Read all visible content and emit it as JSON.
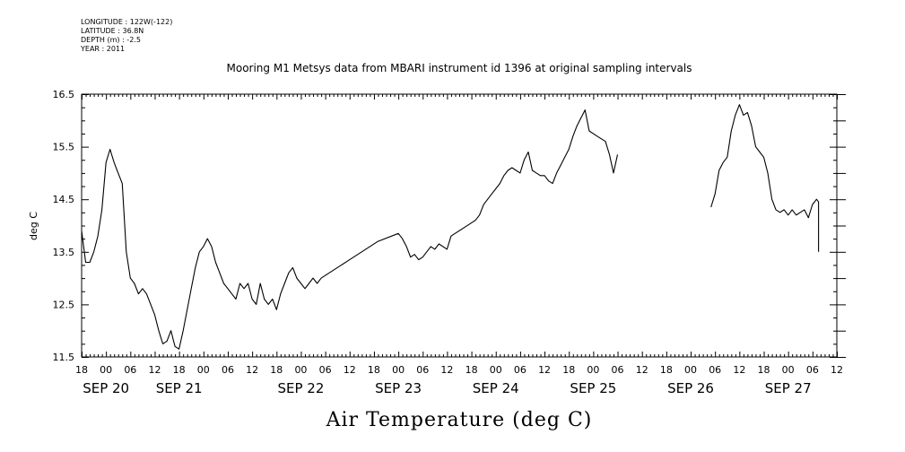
{
  "metadata": {
    "longitude": "LONGITUDE : 122W(-122)",
    "latitude": "LATITUDE : 36.8N",
    "depth": "DEPTH (m) : -2.5",
    "year": "YEAR : 2011"
  },
  "chart_data": {
    "type": "line",
    "title": "Mooring M1 Metsys data from MBARI instrument id 1396 at original sampling intervals",
    "xlabel": "Air Temperature (deg C)",
    "ylabel": "deg C",
    "x_units": "hours since 2011-09-19 18:00",
    "xlim": [
      0,
      186
    ],
    "ylim": [
      11.5,
      16.5
    ],
    "y_ticks": [
      11.5,
      12.5,
      13.5,
      14.5,
      15.5,
      16.5
    ],
    "x_hour_ticks": [
      "18",
      "00",
      "06",
      "12",
      "18",
      "00",
      "06",
      "12",
      "18",
      "00",
      "06",
      "12",
      "18",
      "00",
      "06",
      "12",
      "18",
      "00",
      "06",
      "12",
      "18",
      "00",
      "06",
      "12",
      "18",
      "00",
      "06",
      "12",
      "18",
      "00",
      "06",
      "12"
    ],
    "x_day_labels": [
      {
        "label": "SEP 20",
        "hour": 6
      },
      {
        "label": "SEP 21",
        "hour": 24
      },
      {
        "label": "SEP 22",
        "hour": 54
      },
      {
        "label": "SEP 23",
        "hour": 78
      },
      {
        "label": "SEP 24",
        "hour": 102
      },
      {
        "label": "SEP 25",
        "hour": 126
      },
      {
        "label": "SEP 26",
        "hour": 150
      },
      {
        "label": "SEP 27",
        "hour": 174
      }
    ],
    "series": [
      {
        "points": [
          [
            0,
            13.9
          ],
          [
            1,
            13.3
          ],
          [
            2,
            13.3
          ],
          [
            3,
            13.5
          ],
          [
            4,
            13.8
          ],
          [
            5,
            14.3
          ],
          [
            6,
            15.2
          ],
          [
            7,
            15.45
          ],
          [
            8,
            15.2
          ],
          [
            9,
            15.0
          ],
          [
            10,
            14.8
          ],
          [
            11,
            13.5
          ],
          [
            12,
            13.0
          ],
          [
            13,
            12.9
          ],
          [
            14,
            12.7
          ],
          [
            15,
            12.8
          ],
          [
            16,
            12.7
          ],
          [
            17,
            12.5
          ],
          [
            18,
            12.3
          ],
          [
            19,
            12.0
          ],
          [
            20,
            11.75
          ],
          [
            21,
            11.8
          ],
          [
            22,
            12.0
          ],
          [
            23,
            11.7
          ],
          [
            24,
            11.65
          ],
          [
            25,
            12.0
          ],
          [
            26,
            12.4
          ],
          [
            27,
            12.8
          ],
          [
            28,
            13.2
          ],
          [
            29,
            13.5
          ],
          [
            30,
            13.6
          ],
          [
            31,
            13.75
          ],
          [
            32,
            13.6
          ],
          [
            33,
            13.3
          ],
          [
            34,
            13.1
          ],
          [
            35,
            12.9
          ],
          [
            36,
            12.8
          ],
          [
            37,
            12.7
          ],
          [
            38,
            12.6
          ],
          [
            39,
            12.9
          ],
          [
            40,
            12.8
          ],
          [
            41,
            12.9
          ],
          [
            42,
            12.6
          ],
          [
            43,
            12.5
          ],
          [
            44,
            12.9
          ],
          [
            45,
            12.6
          ],
          [
            46,
            12.5
          ],
          [
            47,
            12.6
          ],
          [
            48,
            12.4
          ],
          [
            49,
            12.7
          ],
          [
            50,
            12.9
          ],
          [
            51,
            13.1
          ],
          [
            52,
            13.2
          ],
          [
            53,
            13.0
          ],
          [
            54,
            12.9
          ],
          [
            55,
            12.8
          ],
          [
            56,
            12.9
          ],
          [
            57,
            13.0
          ],
          [
            58,
            12.9
          ],
          [
            59,
            13.0
          ]
        ]
      },
      {
        "points": [
          [
            59,
            13.0
          ],
          [
            66,
            13.35
          ],
          [
            73,
            13.7
          ],
          [
            78,
            13.85
          ],
          [
            79,
            13.75
          ],
          [
            80,
            13.6
          ],
          [
            81,
            13.4
          ],
          [
            82,
            13.45
          ],
          [
            83,
            13.35
          ],
          [
            84,
            13.4
          ],
          [
            85,
            13.5
          ],
          [
            86,
            13.6
          ],
          [
            87,
            13.55
          ],
          [
            88,
            13.65
          ],
          [
            90,
            13.55
          ],
          [
            91,
            13.8
          ],
          [
            94,
            13.95
          ],
          [
            97,
            14.1
          ],
          [
            98,
            14.2
          ],
          [
            99,
            14.4
          ],
          [
            101,
            14.6
          ],
          [
            103,
            14.8
          ],
          [
            104,
            14.95
          ],
          [
            105,
            15.05
          ],
          [
            106,
            15.1
          ],
          [
            107,
            15.05
          ],
          [
            108,
            15.0
          ],
          [
            109,
            15.25
          ],
          [
            110,
            15.4
          ],
          [
            111,
            15.05
          ],
          [
            112,
            15.0
          ],
          [
            113,
            14.95
          ],
          [
            114,
            14.95
          ],
          [
            115,
            14.85
          ],
          [
            116,
            14.8
          ],
          [
            117,
            15.0
          ],
          [
            118,
            15.15
          ],
          [
            119,
            15.3
          ],
          [
            120,
            15.45
          ],
          [
            121,
            15.7
          ],
          [
            122,
            15.9
          ],
          [
            123,
            16.05
          ],
          [
            124,
            16.2
          ],
          [
            125,
            15.8
          ],
          [
            127,
            15.7
          ],
          [
            129,
            15.6
          ],
          [
            130,
            15.35
          ],
          [
            131,
            15.0
          ],
          [
            132,
            15.35
          ]
        ]
      },
      {
        "points": [
          [
            155,
            14.35
          ],
          [
            156,
            14.6
          ],
          [
            157,
            15.05
          ],
          [
            158,
            15.2
          ],
          [
            159,
            15.3
          ],
          [
            160,
            15.8
          ],
          [
            161,
            16.1
          ],
          [
            162,
            16.3
          ],
          [
            163,
            16.1
          ],
          [
            164,
            16.15
          ],
          [
            165,
            15.9
          ],
          [
            166,
            15.5
          ],
          [
            167,
            15.4
          ],
          [
            168,
            15.3
          ],
          [
            169,
            15.0
          ],
          [
            170,
            14.5
          ],
          [
            171,
            14.3
          ],
          [
            172,
            14.25
          ],
          [
            173,
            14.3
          ],
          [
            174,
            14.2
          ],
          [
            175,
            14.3
          ],
          [
            176,
            14.2
          ],
          [
            177,
            14.25
          ],
          [
            178,
            14.3
          ],
          [
            179,
            14.15
          ],
          [
            180,
            14.4
          ],
          [
            181,
            14.5
          ],
          [
            181.5,
            14.45
          ],
          [
            181.5,
            13.5
          ]
        ]
      }
    ],
    "grid": false
  }
}
